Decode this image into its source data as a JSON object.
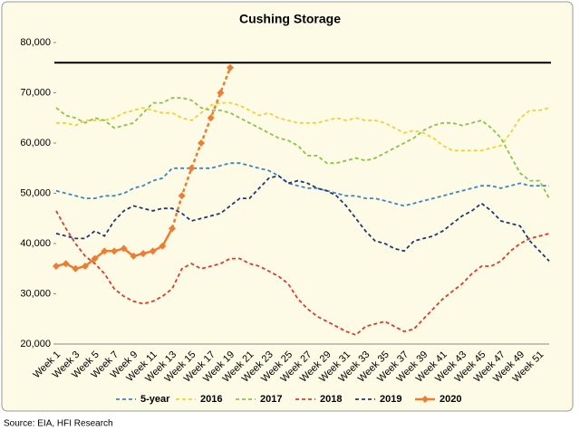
{
  "chart_data": {
    "type": "line",
    "title": "Cushing Storage",
    "source": "Source: EIA, HFI Research",
    "categories": [
      "Week 1",
      null,
      "Week 3",
      null,
      "Week 5",
      null,
      "Week 7",
      null,
      "Week 9",
      null,
      "Week 11",
      null,
      "Week 13",
      null,
      "Week 15",
      null,
      "Week 17",
      null,
      "Week 19",
      null,
      "Week 21",
      null,
      "Week 23",
      null,
      "Week 25",
      null,
      "Week 27",
      null,
      "Week 29",
      null,
      "Week 31",
      null,
      "Week 33",
      null,
      "Week 35",
      null,
      "Week 37",
      null,
      "Week 39",
      null,
      "Week 41",
      null,
      "Week 43",
      null,
      "Week 45",
      null,
      "Week 47",
      null,
      "Week 49",
      null,
      "Week 51",
      null
    ],
    "ylim": [
      20000,
      80000
    ],
    "yticks": [
      {
        "value": 20000,
        "label": "20,000"
      },
      {
        "value": 30000,
        "label": "30,000"
      },
      {
        "value": 40000,
        "label": "40,000"
      },
      {
        "value": 50000,
        "label": "50,000"
      },
      {
        "value": 60000,
        "label": "60,000"
      },
      {
        "value": 70000,
        "label": "70,000"
      },
      {
        "value": 80000,
        "label": "80,000"
      }
    ],
    "reference_line": {
      "value": 76000,
      "color": "#000000"
    },
    "legend": "bottom",
    "series": [
      {
        "name": "5-year",
        "color": "#3b86c6",
        "dashed": true,
        "values": [
          50500,
          50000,
          49500,
          49000,
          49000,
          49500,
          49500,
          50000,
          51000,
          51500,
          52500,
          53000,
          55000,
          55000,
          55000,
          55000,
          55000,
          55500,
          56000,
          56000,
          55500,
          55000,
          54500,
          53500,
          52000,
          51500,
          51000,
          51000,
          50500,
          50000,
          49500,
          49500,
          49000,
          49000,
          48500,
          48000,
          47500,
          48000,
          48500,
          49000,
          49500,
          50000,
          50500,
          51000,
          51500,
          51500,
          51000,
          51500,
          52000,
          51500,
          51500,
          51500
        ]
      },
      {
        "name": "2016",
        "color": "#f3d03b",
        "dashed": true,
        "values": [
          64000,
          64000,
          63500,
          64500,
          64500,
          64500,
          65000,
          66000,
          66500,
          67000,
          66500,
          66000,
          66000,
          65000,
          64500,
          66000,
          67500,
          68000,
          68000,
          67500,
          66500,
          65500,
          66000,
          65000,
          64500,
          64000,
          64000,
          64000,
          64500,
          65000,
          64500,
          65000,
          64500,
          64500,
          64000,
          63000,
          62000,
          62500,
          62000,
          61000,
          59500,
          58500,
          58500,
          58500,
          58500,
          59000,
          59500,
          62000,
          65000,
          66500,
          66500,
          67000
        ]
      },
      {
        "name": "2017",
        "color": "#8bc34a",
        "dashed": true,
        "values": [
          67000,
          65500,
          65000,
          64000,
          65000,
          64500,
          63000,
          63500,
          64000,
          66000,
          68000,
          68000,
          69000,
          69000,
          68500,
          67000,
          66500,
          66500,
          66000,
          65000,
          64000,
          63000,
          62000,
          61000,
          60500,
          59500,
          57500,
          57500,
          56000,
          56000,
          56500,
          57000,
          56500,
          57000,
          58000,
          59000,
          60000,
          61000,
          62500,
          63500,
          64000,
          64000,
          63500,
          64000,
          64500,
          63000,
          61000,
          57500,
          54000,
          52500,
          52500,
          49000
        ]
      },
      {
        "name": "2018",
        "color": "#e03a2a",
        "dashed": true,
        "values": [
          46500,
          43000,
          40000,
          37500,
          36000,
          34000,
          31000,
          29500,
          28500,
          28000,
          28500,
          29500,
          31000,
          35000,
          36000,
          35000,
          35500,
          36000,
          37000,
          37000,
          36000,
          35500,
          34500,
          33500,
          32000,
          29000,
          27000,
          25500,
          24500,
          23500,
          22500,
          21800,
          23500,
          24000,
          24500,
          23500,
          22500,
          23000,
          25000,
          27000,
          29000,
          30500,
          32000,
          34000,
          35500,
          35500,
          36500,
          38500,
          40000,
          41000,
          41500,
          42000
        ]
      },
      {
        "name": "2019",
        "color": "#1f3a6e",
        "dashed": true,
        "values": [
          42000,
          41500,
          41000,
          41000,
          42500,
          41500,
          44500,
          46500,
          47500,
          47000,
          46500,
          47000,
          47000,
          46000,
          44500,
          45000,
          45500,
          46000,
          47500,
          49000,
          49000,
          51000,
          53000,
          53500,
          52000,
          52500,
          52000,
          51000,
          50500,
          49500,
          47500,
          45000,
          42500,
          40500,
          40000,
          39000,
          38500,
          40500,
          41000,
          41500,
          42500,
          44000,
          45500,
          46500,
          48000,
          46500,
          44500,
          44000,
          43500,
          40500,
          38500,
          36500
        ]
      },
      {
        "name": "2020",
        "color": "#ed7d31",
        "marker": "diamond",
        "dashed_from": 12,
        "values": [
          35500,
          36000,
          35000,
          35500,
          37000,
          38500,
          38500,
          39000,
          37500,
          38000,
          38500,
          39500,
          43000,
          49500,
          55000,
          60000,
          65000,
          70000,
          75000,
          null,
          null,
          null,
          null,
          null,
          null,
          null,
          null,
          null,
          null,
          null,
          null,
          null,
          null,
          null,
          null,
          null,
          null,
          null,
          null,
          null,
          null,
          null,
          null,
          null,
          null,
          null,
          null,
          null,
          null,
          null,
          null,
          null
        ]
      }
    ]
  }
}
